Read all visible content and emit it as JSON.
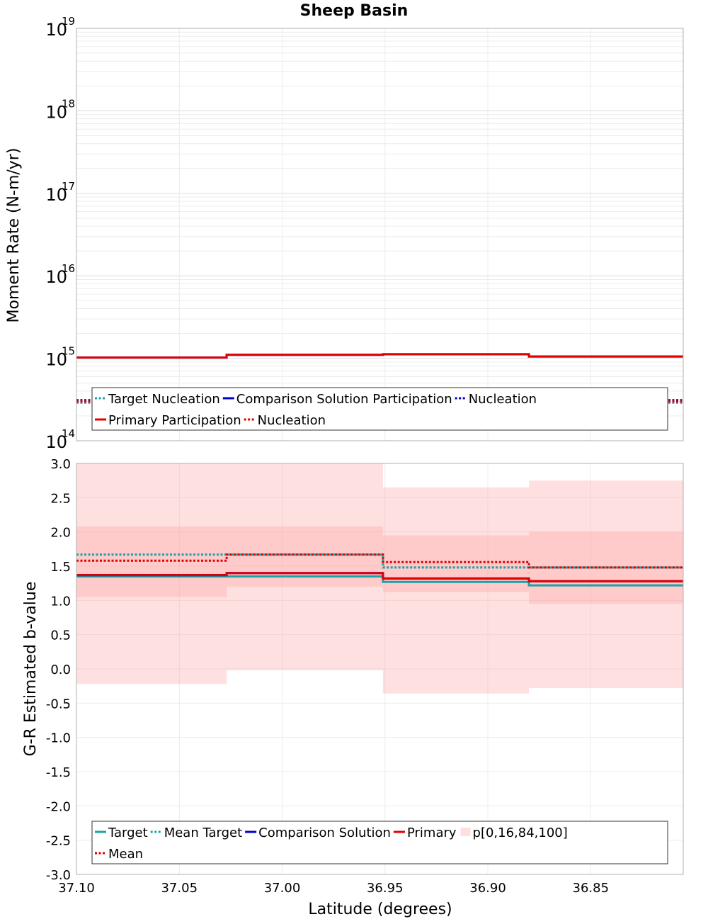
{
  "chart_data": [
    {
      "type": "line",
      "title": "Sheep Basin",
      "ylabel": "Moment Rate (N-m/yr)",
      "yscale": "log",
      "ylim": [
        100000000000000.0,
        1e+19
      ],
      "y_ticks": [
        {
          "base": "10",
          "exp": "14",
          "value": 14
        },
        {
          "base": "10",
          "exp": "15",
          "value": 15
        },
        {
          "base": "10",
          "exp": "16",
          "value": 16
        },
        {
          "base": "10",
          "exp": "17",
          "value": 17
        },
        {
          "base": "10",
          "exp": "18",
          "value": 18
        },
        {
          "base": "10",
          "exp": "19",
          "value": 19
        }
      ],
      "xlim": [
        37.1,
        36.805
      ],
      "bin_edges": [
        37.1,
        37.027,
        36.951,
        36.88,
        36.805
      ],
      "series": [
        {
          "name": "Target Nucleation",
          "color": "#1aa3a3",
          "style": "dotted",
          "values": [
            290000000000000.0,
            290000000000000.0,
            290000000000000.0,
            290000000000000.0
          ]
        },
        {
          "name": "Comparison Solution Participation",
          "color": "#0000cc",
          "style": "solid",
          "values": [
            1020000000000000.0,
            1100000000000000.0,
            1120000000000000.0,
            1050000000000000.0
          ]
        },
        {
          "name": "Nucleation",
          "color": "#0000cc",
          "style": "dotted",
          "values": [
            310000000000000.0,
            310000000000000.0,
            310000000000000.0,
            310000000000000.0
          ]
        },
        {
          "name": "Primary Participation",
          "color": "#e00000",
          "style": "solid",
          "values": [
            1020000000000000.0,
            1100000000000000.0,
            1120000000000000.0,
            1050000000000000.0
          ]
        },
        {
          "name": "Nucleation",
          "color": "#e00000",
          "style": "dotted",
          "values": [
            300000000000000.0,
            300000000000000.0,
            300000000000000.0,
            300000000000000.0
          ]
        }
      ],
      "legend_location": "bottom"
    },
    {
      "type": "line",
      "xlabel": "Latitude (degrees)",
      "ylabel": "G-R Estimated b-value",
      "ylim": [
        -3.0,
        3.0
      ],
      "y_ticks": [
        "-3.0",
        "-2.5",
        "-2.0",
        "-1.5",
        "-1.0",
        "-0.5",
        "0.0",
        "0.5",
        "1.0",
        "1.5",
        "2.0",
        "2.5",
        "3.0"
      ],
      "xlim": [
        37.1,
        36.805
      ],
      "x_ticks": [
        {
          "label": "37.10",
          "value": 37.1
        },
        {
          "label": "37.05",
          "value": 37.05
        },
        {
          "label": "37.00",
          "value": 37.0
        },
        {
          "label": "36.95",
          "value": 36.95
        },
        {
          "label": "36.90",
          "value": 36.9
        },
        {
          "label": "36.85",
          "value": 36.85
        }
      ],
      "bin_edges": [
        37.1,
        37.027,
        36.951,
        36.88,
        36.805
      ],
      "band": {
        "name": "p[0,16,84,100]",
        "color": "#ff9999",
        "p0": [
          -0.22,
          -0.02,
          -0.36,
          -0.28
        ],
        "p16": [
          1.05,
          1.2,
          1.12,
          0.95
        ],
        "p84": [
          2.08,
          2.08,
          1.95,
          2.0
        ],
        "p100": [
          3.0,
          3.0,
          2.65,
          2.75
        ]
      },
      "series": [
        {
          "name": "Target",
          "color": "#1aa3a3",
          "style": "solid",
          "values": [
            1.35,
            1.35,
            1.27,
            1.22
          ]
        },
        {
          "name": "Mean Target",
          "color": "#1aa3a3",
          "style": "dotted",
          "values": [
            1.67,
            1.67,
            1.48,
            1.48
          ]
        },
        {
          "name": "Comparison Solution",
          "color": "#0000cc",
          "style": "solid",
          "values": [
            1.37,
            1.4,
            1.32,
            1.28
          ]
        },
        {
          "name": "Primary",
          "color": "#e00000",
          "style": "solid",
          "values": [
            1.37,
            1.4,
            1.32,
            1.28
          ]
        },
        {
          "name": "Mean",
          "color": "#e00000",
          "style": "dotted",
          "values": [
            1.58,
            1.67,
            1.56,
            1.48
          ]
        }
      ],
      "legend_location": "bottom"
    }
  ]
}
